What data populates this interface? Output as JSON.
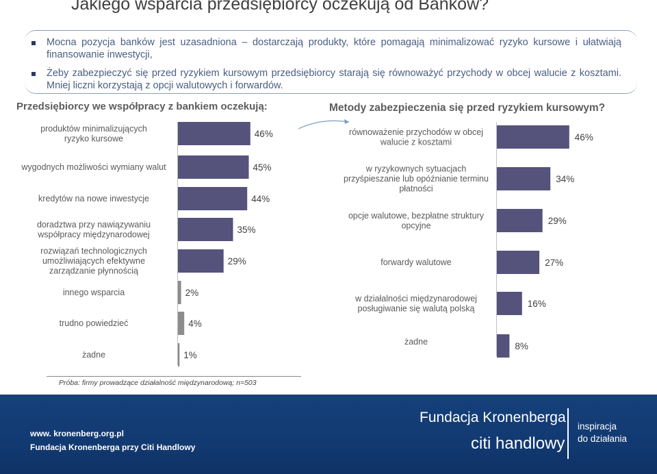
{
  "header": {
    "title": "Jakiego wsparcia przedsiębiorcy oczekują od Banków?"
  },
  "bullets": [
    {
      "text": "Mocna pozycja banków jest uzasadniona – dostarczają produkty, które pomagają minimalizować ryzyko kursowe i ułatwiają finansowanie inwestycji,"
    },
    {
      "text": "Żeby zabezpieczyć się przed ryzykiem kursowym przedsiębiorcy starają się równoważyć przychody w obcej walucie z kosztami.",
      "text2": " Mniej liczni korzystają z opcji walutowych i forwardów."
    }
  ],
  "colors": {
    "bar": "#55527c",
    "bar_small": "#8c8c8c",
    "footer_bg": "#133c75",
    "bullet_text": "#4a5d82"
  },
  "chart_data": [
    {
      "type": "bar",
      "orientation": "horizontal",
      "title": "Przedsiębiorcy we współpracy z bankiem oczekują:",
      "categories": [
        [
          "produktów minimalizujących",
          "ryzyko kursowe"
        ],
        [
          "wygodnych możliwości wymiany walut"
        ],
        [
          "kredytów na nowe inwestycje"
        ],
        [
          "doradztwa przy nawiązywaniu",
          "współpracy międzynarodowej"
        ],
        [
          "rozwiązań technologicznych",
          "umożliwiających efektywne",
          "zarządzanie płynnością"
        ],
        [
          "innego wsparcia"
        ],
        [
          "trudno powiedzieć"
        ],
        [
          "żadne"
        ]
      ],
      "values": [
        46,
        45,
        44,
        35,
        29,
        2,
        4,
        1
      ],
      "value_labels": [
        "46%",
        "45%",
        "44%",
        "35%",
        "29%",
        "2%",
        "4%",
        "1%"
      ]
    },
    {
      "type": "bar",
      "orientation": "horizontal",
      "title": "Metody zabezpieczenia się przed ryzykiem kursowym?",
      "categories": [
        [
          "równoważenie przychodów w obcej",
          "walucie z kosztami"
        ],
        [
          "w ryzykownych sytuacjach",
          "przyśpieszanie lub opóźnianie terminu",
          "płatności"
        ],
        [
          "opcje walutowe, bezpłatne struktury",
          "opcyjne"
        ],
        [
          "forwardy walutowe"
        ],
        [
          "w działalności międzynarodowej",
          "posługiwanie  się  walutą polską"
        ],
        [
          "żadne"
        ]
      ],
      "values": [
        46,
        34,
        29,
        27,
        16,
        8
      ],
      "value_labels": [
        "46%",
        "34%",
        "29%",
        "27%",
        "16%",
        "8%"
      ]
    }
  ],
  "sample_note": "Próba: firmy prowadzące działalność międzynarodową; n=503",
  "footer": {
    "url": "www. kronenberg.org.pl",
    "org": "Fundacja Kronenberga przy Citi Handlowy",
    "brand": "Fundacja Kronenberga",
    "citi": "citi handlowy",
    "tagline1": "inspiracja",
    "tagline2": "do działania"
  }
}
